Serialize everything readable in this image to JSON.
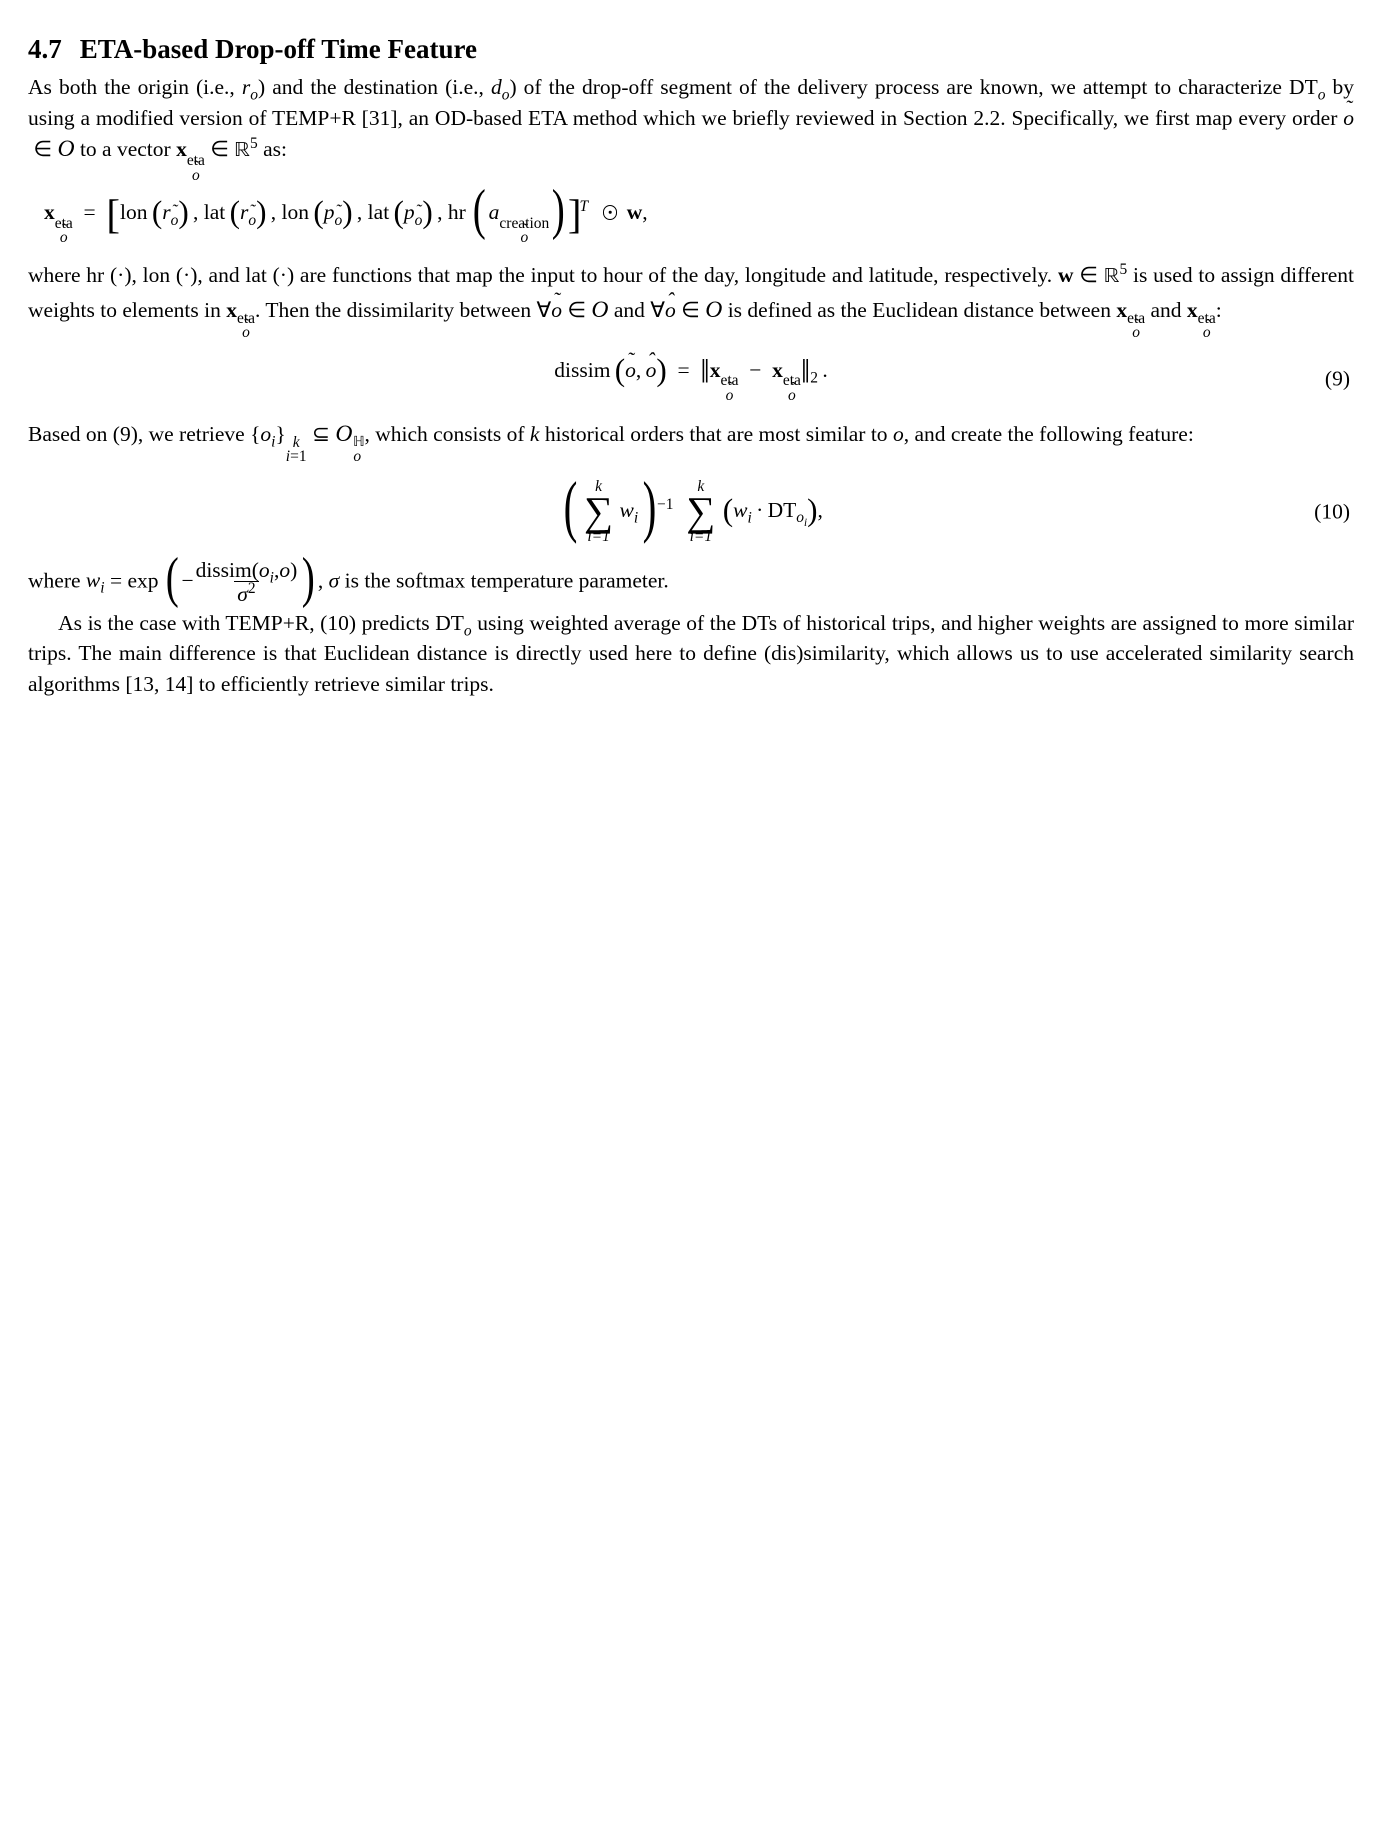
{
  "section": {
    "number": "4.7",
    "title": "ETA-based Drop-off Time Feature"
  },
  "para1_a": "As both the origin (i.e., ",
  "para1_b": ") and the destination (i.e., ",
  "para1_c": ") of the drop-off segment of the delivery process are known, we attempt to characterize DT",
  "para1_d": " by using a modified version of TEMP+R [31], an OD-based ETA method which we briefly reviewed in Section 2.2. Specifically, we first map every order ",
  "para1_e": " to a vector ",
  "para1_f": " as:",
  "sym": {
    "r": "r",
    "d": "d",
    "o": "o",
    "o_tilde": "o",
    "O": "O",
    "p": "p",
    "a": "a",
    "x": "x",
    "w": "w",
    "R": "ℝ",
    "five": "5",
    "eta": "eta",
    "creation": "creation",
    "H": "ℍ",
    "DT": "DT",
    "k": "k",
    "i": "i",
    "sigma": "σ",
    "T": "T",
    "two": "2",
    "in": "∈",
    "subset": "⊆",
    "forall": "∀",
    "minus": "−",
    "cdot": "·",
    "comma": ",",
    "eq": "=",
    "lon": "lon",
    "lat": "lat",
    "hr": "hr",
    "dissim": "dissim",
    "exp": "exp"
  },
  "para2_a": "where hr (·), lon (·), and lat (·) are functions that map the input to hour of the day, longitude and latitude, respectively. ",
  "para2_b": " is used to assign different weights to elements in ",
  "para2_c": ". Then the dissimilarity between ",
  "para2_d": " and ",
  "para2_e": " is defined as the Euclidean distance between ",
  "para2_f": " and ",
  "para2_g": ":",
  "eq9num": "(9)",
  "para3_a": "Based on (9), we retrieve ",
  "para3_b": ", which consists of ",
  "para3_c": " historical orders that are most similar to ",
  "para3_d": ", and create the following feature:",
  "eq10num": "(10)",
  "para4_a": "where ",
  "para4_b": " is the softmax temperature parameter.",
  "para5": "As is the case with TEMP+R, (10) predicts DT",
  "para5_b": " using weighted average of the DTs of historical trips, and higher weights are assigned to more similar trips. The main difference is that Euclidean distance is directly used here to define (dis)similarity, which allows us to use accelerated similarity search algorithms [13, 14] to efficiently retrieve similar trips."
}
